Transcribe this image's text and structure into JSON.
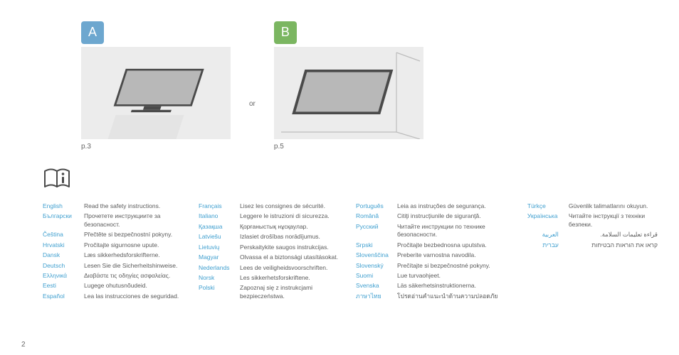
{
  "options": {
    "a": {
      "letter": "A",
      "caption": "p.3",
      "badge_color": "#6da7cf"
    },
    "b": {
      "letter": "B",
      "caption": "p.5",
      "badge_color": "#7bb661"
    },
    "separator": "or"
  },
  "illus_colors": {
    "bg": "#ececec",
    "tv_dark": "#4a4a4a",
    "tv_light": "#b8b8b8",
    "stand": "#e4e4e4",
    "wall_line": "#bdbdbd"
  },
  "page_number": "2",
  "columns": [
    [
      {
        "lang": "English",
        "text": "Read the safety instructions."
      },
      {
        "lang": "Български",
        "text": "Прочетете инструкциите за безопасност."
      },
      {
        "lang": "Čeština",
        "text": "Přečtěte si bezpečnostní pokyny."
      },
      {
        "lang": "Hrvatski",
        "text": "Pročitajte sigurnosne upute."
      },
      {
        "lang": "Dansk",
        "text": "Læs sikkerhedsforskrifterne."
      },
      {
        "lang": "Deutsch",
        "text": "Lesen Sie die Sicherheitshinweise."
      },
      {
        "lang": "Ελληνικά",
        "text": "Διαβάστε τις οδηγίες ασφαλείας."
      },
      {
        "lang": "Eesti",
        "text": "Lugege ohutusnõudeid."
      },
      {
        "lang": "Español",
        "text": "Lea las instrucciones de seguridad."
      }
    ],
    [
      {
        "lang": "Français",
        "text": "Lisez les consignes de sécurité."
      },
      {
        "lang": "Italiano",
        "text": "Leggere le istruzioni di sicurezza."
      },
      {
        "lang": "Қазақша",
        "text": "Қорғаныстық нұсқаулар."
      },
      {
        "lang": "Latviešu",
        "text": "Izlasiet drošības norādījumus."
      },
      {
        "lang": "Lietuvių",
        "text": "Perskaitykite saugos instrukcijas."
      },
      {
        "lang": "Magyar",
        "text": "Olvassa el a biztonsági utasításokat."
      },
      {
        "lang": "Nederlands",
        "text": "Lees de veiligheidsvoorschriften."
      },
      {
        "lang": "Norsk",
        "text": "Les sikkerhetsforskriftene."
      },
      {
        "lang": "Polski",
        "text": "Zapoznaj się z instrukcjami bezpieczeństwa."
      }
    ],
    [
      {
        "lang": "Português",
        "text": "Leia as instruções de segurança."
      },
      {
        "lang": "Română",
        "text": "Citiţi instrucţiunile de siguranţă."
      },
      {
        "lang": "Русский",
        "text": "Читайте инструкции по технике безопасности."
      },
      {
        "lang": "Srpski",
        "text": "Pročitajte bezbednosna uputstva."
      },
      {
        "lang": "Slovenščina",
        "text": "Preberite varnostna navodila."
      },
      {
        "lang": "Slovenský",
        "text": "Prečítajte si bezpečnostné pokyny."
      },
      {
        "lang": "Suomi",
        "text": "Lue turvaohjeet."
      },
      {
        "lang": "Svenska",
        "text": "Läs säkerhetsinstruktionerna."
      },
      {
        "lang": "ภาษาไทย",
        "text": "โปรดอ่านคำแนะนำด้านความปลอดภัย"
      }
    ],
    [
      {
        "lang": "Türkçe",
        "text": "Güvenlik talimatlarını okuyun."
      },
      {
        "lang": "Українська",
        "text": "Читайте інструкції з техніки безпеки."
      },
      {
        "lang": "العربية",
        "text": "قراءة تعليمات السلامة.",
        "rtl": true
      },
      {
        "lang": "עברית",
        "text": "קראו את הוראות הבטיחות",
        "rtl": true
      }
    ]
  ]
}
